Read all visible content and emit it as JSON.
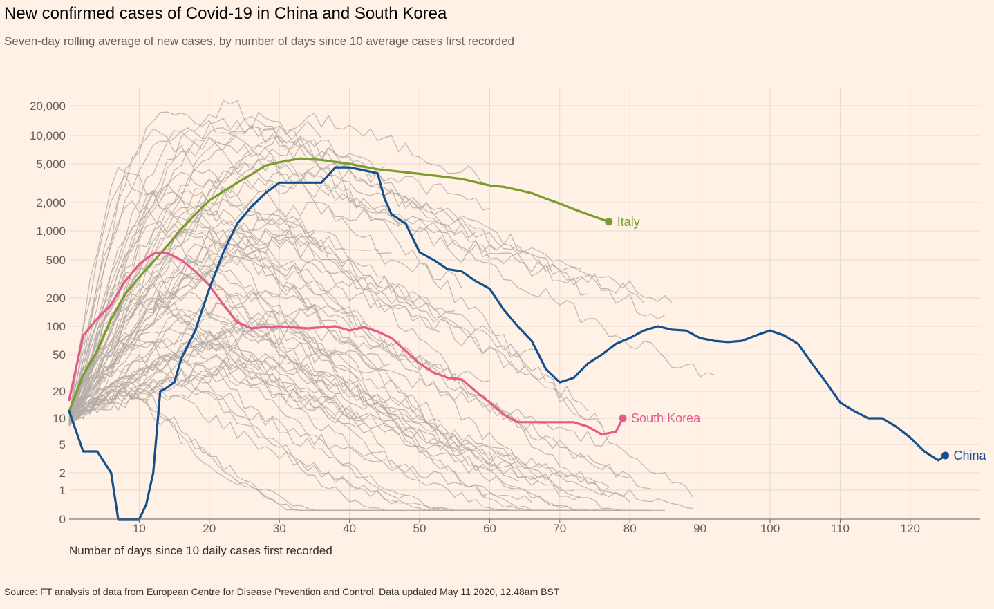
{
  "title": "New confirmed cases of Covid-19 in China and South Korea",
  "subtitle": "Seven-day rolling average of new cases, by number of days since 10 average cases first recorded",
  "source": "Source: FT analysis of data from European Centre for Disease Prevention and Control. Data updated May 11 2020, 12.48am BST",
  "chart_data": {
    "type": "line",
    "xlabel": "Number of days since 10 daily cases first recorded",
    "xlim": [
      0,
      130
    ],
    "x_ticks": [
      10,
      20,
      30,
      40,
      50,
      60,
      70,
      80,
      90,
      100,
      110,
      120
    ],
    "y_scale": "log",
    "y_ticks": [
      {
        "value": 0,
        "label": "0"
      },
      {
        "value": 1,
        "label": "1"
      },
      {
        "value": 2,
        "label": "2"
      },
      {
        "value": 5,
        "label": "5"
      },
      {
        "value": 10,
        "label": "10"
      },
      {
        "value": 20,
        "label": "20"
      },
      {
        "value": 50,
        "label": "50"
      },
      {
        "value": 100,
        "label": "100"
      },
      {
        "value": 200,
        "label": "200"
      },
      {
        "value": 500,
        "label": "500"
      },
      {
        "value": 1000,
        "label": "1,000"
      },
      {
        "value": 2000,
        "label": "2,000"
      },
      {
        "value": 5000,
        "label": "5,000"
      },
      {
        "value": 10000,
        "label": "10,000"
      },
      {
        "value": 20000,
        "label": "20,000"
      }
    ],
    "grid": true,
    "colors": {
      "Italy": "#7a9b2e",
      "South Korea": "#e8588a",
      "China": "#13508e",
      "other": "#b3aca6"
    },
    "series": [
      {
        "name": "Italy",
        "x": [
          0,
          2,
          4,
          6,
          8,
          10,
          12,
          14,
          16,
          18,
          20,
          22,
          24,
          26,
          28,
          30,
          33,
          36,
          40,
          44,
          48,
          52,
          56,
          60,
          62,
          64,
          66,
          68,
          70,
          72,
          74,
          77
        ],
        "values": [
          12,
          30,
          55,
          120,
          220,
          330,
          480,
          700,
          1050,
          1500,
          2100,
          2600,
          3200,
          3900,
          4800,
          5200,
          5700,
          5500,
          5000,
          4400,
          4100,
          3800,
          3500,
          3000,
          2900,
          2700,
          2500,
          2200,
          1950,
          1700,
          1500,
          1250
        ]
      },
      {
        "name": "South Korea",
        "x": [
          0,
          2,
          4,
          6,
          8,
          10,
          12,
          13,
          14,
          16,
          18,
          20,
          22,
          24,
          26,
          28,
          30,
          34,
          38,
          40,
          42,
          44,
          46,
          48,
          50,
          52,
          54,
          56,
          58,
          60,
          62,
          64,
          66,
          68,
          70,
          72,
          74,
          76,
          78,
          79
        ],
        "values": [
          16,
          80,
          120,
          170,
          300,
          450,
          580,
          600,
          590,
          500,
          380,
          270,
          170,
          110,
          95,
          98,
          100,
          95,
          100,
          90,
          98,
          88,
          75,
          55,
          40,
          32,
          28,
          27,
          20,
          15,
          11,
          9,
          9,
          9,
          9,
          9,
          8,
          6.5,
          7,
          10
        ]
      },
      {
        "name": "China",
        "x": [
          0,
          2,
          4,
          6,
          7,
          8,
          10,
          11,
          12,
          13,
          14,
          15,
          16,
          18,
          20,
          22,
          24,
          26,
          28,
          30,
          33,
          36,
          38,
          40,
          44,
          45,
          46,
          48,
          50,
          52,
          54,
          56,
          58,
          60,
          62,
          64,
          66,
          68,
          70,
          72,
          74,
          76,
          78,
          80,
          82,
          84,
          86,
          88,
          90,
          92,
          94,
          96,
          98,
          100,
          102,
          104,
          106,
          108,
          110,
          112,
          114,
          116,
          118,
          120,
          122,
          124,
          125
        ],
        "values": [
          12,
          4,
          4,
          2,
          0,
          0,
          0,
          0.5,
          2,
          20,
          22,
          25,
          45,
          90,
          250,
          600,
          1200,
          1800,
          2500,
          3200,
          3200,
          3200,
          4600,
          4600,
          4000,
          2200,
          1500,
          1200,
          600,
          500,
          400,
          380,
          300,
          250,
          150,
          100,
          70,
          35,
          25,
          28,
          40,
          50,
          65,
          75,
          90,
          100,
          92,
          90,
          75,
          70,
          68,
          70,
          80,
          90,
          80,
          65,
          40,
          25,
          15,
          12,
          10,
          10,
          8,
          6,
          4,
          3,
          3.5
        ]
      }
    ]
  }
}
